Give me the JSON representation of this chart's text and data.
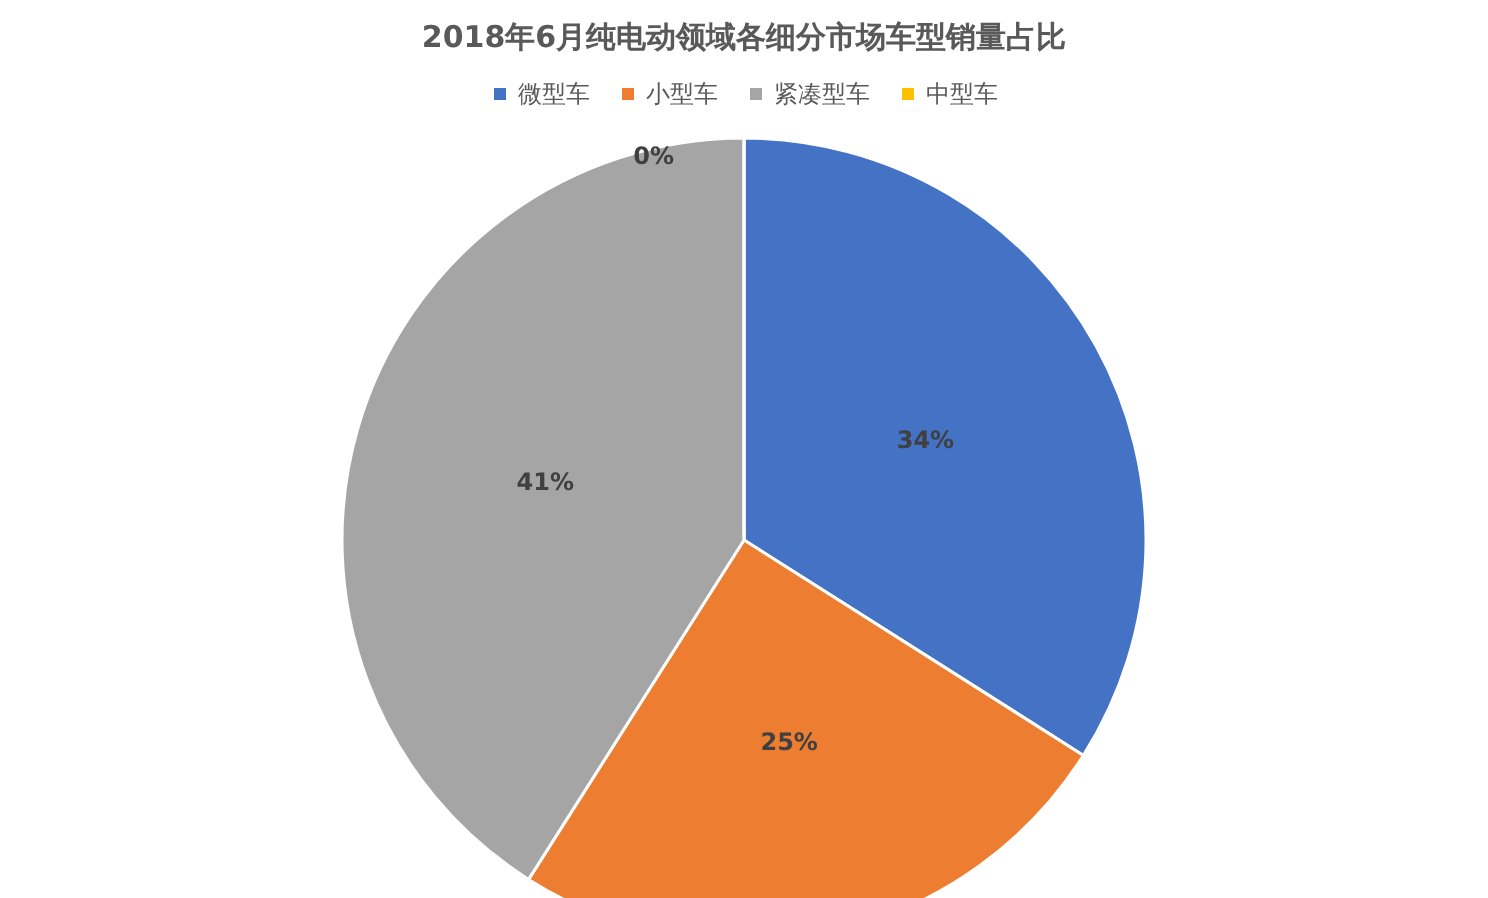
{
  "chart_data": {
    "type": "pie",
    "title": "2018年6月纯电动领域各细分市场车型销量占比",
    "categories": [
      "微型车",
      "小型车",
      "紧凑型车",
      "中型车"
    ],
    "values": [
      34,
      25,
      41,
      0
    ],
    "colors": [
      "#4472c4",
      "#ed7d31",
      "#a5a5a5",
      "#ffc000"
    ],
    "value_labels": [
      "34%",
      "25%",
      "41%",
      "0%"
    ],
    "legend": "top"
  }
}
